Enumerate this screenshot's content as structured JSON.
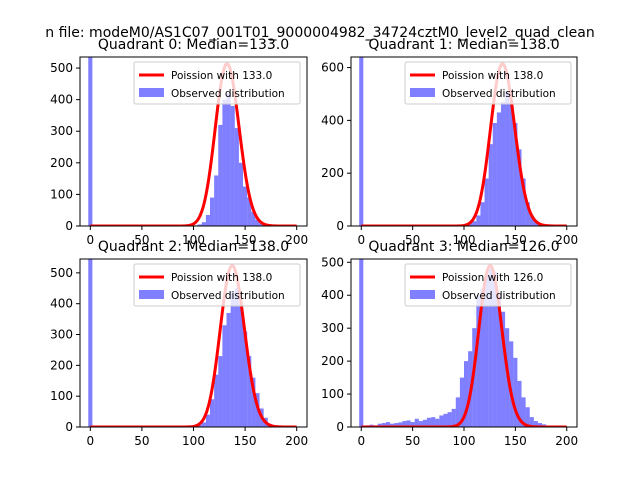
{
  "figure": {
    "suptitle": "n file: modeM0/AS1C07_001T01_9000004982_34724cztM0_level2_quad_clean"
  },
  "colors": {
    "hist": "#0000ff",
    "curve": "#ff0000",
    "axis": "#000000",
    "legend_border": "#cccccc"
  },
  "chart_data": [
    {
      "type": "bar",
      "title": "Quadrant 0: Median=133.0",
      "median": 133.0,
      "xlim": [
        -10,
        210
      ],
      "ylim": [
        0,
        535
      ],
      "xticks": [
        0,
        50,
        100,
        150,
        200
      ],
      "yticks": [
        0,
        100,
        200,
        300,
        400,
        500
      ],
      "legend": {
        "placement": "upper-right",
        "entries": [
          "Poission with 133.0",
          "Observed distribution"
        ]
      },
      "bin_width": 4,
      "spike": {
        "x": 0,
        "value": 535
      },
      "bins": [
        [
          100,
          2
        ],
        [
          104,
          5
        ],
        [
          108,
          12
        ],
        [
          112,
          35
        ],
        [
          116,
          90
        ],
        [
          120,
          160
        ],
        [
          124,
          320
        ],
        [
          128,
          400
        ],
        [
          132,
          420
        ],
        [
          136,
          380
        ],
        [
          140,
          310
        ],
        [
          144,
          200
        ],
        [
          148,
          125
        ],
        [
          152,
          90
        ],
        [
          156,
          45
        ],
        [
          160,
          20
        ],
        [
          164,
          8
        ],
        [
          168,
          3
        ]
      ]
    },
    {
      "type": "bar",
      "title": "Quadrant 1: Median=138.0",
      "median": 138.0,
      "xlim": [
        -10,
        210
      ],
      "ylim": [
        0,
        640
      ],
      "xticks": [
        0,
        50,
        100,
        150,
        200
      ],
      "yticks": [
        0,
        200,
        400,
        600
      ],
      "legend": {
        "placement": "upper-right",
        "entries": [
          "Poission with 138.0",
          "Observed distribution"
        ]
      },
      "bin_width": 4,
      "spike": {
        "x": 0,
        "value": 640
      },
      "bins": [
        [
          100,
          5
        ],
        [
          104,
          10
        ],
        [
          108,
          18
        ],
        [
          112,
          40
        ],
        [
          116,
          90
        ],
        [
          120,
          180
        ],
        [
          124,
          310
        ],
        [
          128,
          390
        ],
        [
          132,
          430
        ],
        [
          136,
          470
        ],
        [
          140,
          510
        ],
        [
          144,
          470
        ],
        [
          148,
          390
        ],
        [
          152,
          290
        ],
        [
          156,
          180
        ],
        [
          160,
          90
        ],
        [
          164,
          40
        ],
        [
          168,
          18
        ],
        [
          172,
          8
        ],
        [
          176,
          4
        ]
      ]
    },
    {
      "type": "bar",
      "title": "Quadrant 2: Median=138.0",
      "median": 138.0,
      "xlim": [
        -10,
        210
      ],
      "ylim": [
        0,
        545
      ],
      "xticks": [
        0,
        50,
        100,
        150,
        200
      ],
      "yticks": [
        0,
        100,
        200,
        300,
        400,
        500
      ],
      "legend": {
        "placement": "upper-right",
        "entries": [
          "Poission with 138.0",
          "Observed distribution"
        ]
      },
      "bin_width": 4,
      "spike": {
        "x": 0,
        "value": 545
      },
      "bins": [
        [
          100,
          3
        ],
        [
          104,
          8
        ],
        [
          108,
          15
        ],
        [
          112,
          40
        ],
        [
          116,
          90
        ],
        [
          120,
          170
        ],
        [
          124,
          230
        ],
        [
          128,
          330
        ],
        [
          132,
          370
        ],
        [
          136,
          440
        ],
        [
          140,
          450
        ],
        [
          144,
          400
        ],
        [
          148,
          310
        ],
        [
          152,
          230
        ],
        [
          156,
          160
        ],
        [
          160,
          110
        ],
        [
          164,
          60
        ],
        [
          168,
          30
        ],
        [
          172,
          10
        ],
        [
          176,
          4
        ]
      ]
    },
    {
      "type": "bar",
      "title": "Quadrant 3: Median=126.0",
      "median": 126.0,
      "xlim": [
        -10,
        210
      ],
      "ylim": [
        0,
        510
      ],
      "xticks": [
        0,
        50,
        100,
        150,
        200
      ],
      "yticks": [
        0,
        100,
        200,
        300,
        400,
        500
      ],
      "legend": {
        "placement": "upper-right",
        "entries": [
          "Poission with 126.0",
          "Observed distribution"
        ]
      },
      "bin_width": 4,
      "spike": {
        "x": 0,
        "value": 510
      },
      "bins": [
        [
          4,
          5
        ],
        [
          8,
          7
        ],
        [
          12,
          5
        ],
        [
          16,
          10
        ],
        [
          20,
          12
        ],
        [
          24,
          15
        ],
        [
          28,
          10
        ],
        [
          32,
          12
        ],
        [
          36,
          14
        ],
        [
          40,
          18
        ],
        [
          44,
          20
        ],
        [
          48,
          15
        ],
        [
          52,
          25
        ],
        [
          56,
          18
        ],
        [
          60,
          22
        ],
        [
          64,
          28
        ],
        [
          68,
          30
        ],
        [
          72,
          25
        ],
        [
          76,
          35
        ],
        [
          80,
          40
        ],
        [
          84,
          45
        ],
        [
          88,
          55
        ],
        [
          92,
          90
        ],
        [
          96,
          150
        ],
        [
          100,
          200
        ],
        [
          104,
          230
        ],
        [
          108,
          300
        ],
        [
          112,
          400
        ],
        [
          116,
          420
        ],
        [
          120,
          460
        ],
        [
          124,
          480
        ],
        [
          128,
          470
        ],
        [
          132,
          400
        ],
        [
          136,
          350
        ],
        [
          140,
          300
        ],
        [
          144,
          260
        ],
        [
          148,
          210
        ],
        [
          152,
          140
        ],
        [
          156,
          90
        ],
        [
          160,
          60
        ],
        [
          164,
          30
        ],
        [
          168,
          18
        ],
        [
          172,
          12
        ],
        [
          176,
          8
        ],
        [
          180,
          4
        ]
      ]
    }
  ]
}
